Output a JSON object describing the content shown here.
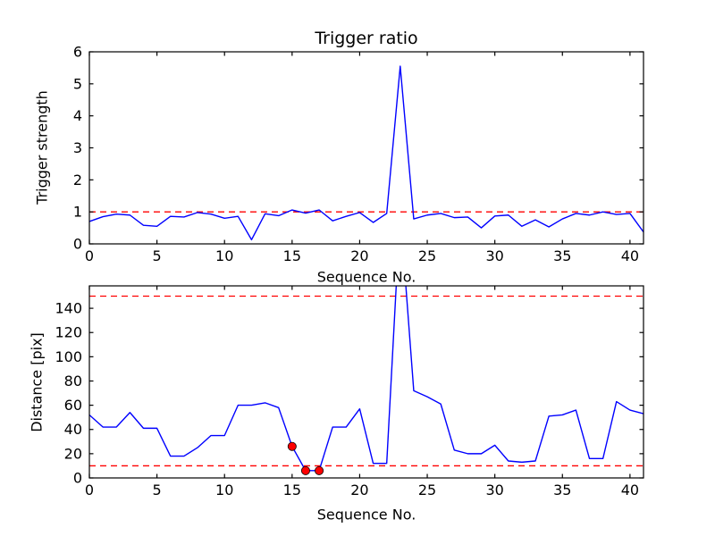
{
  "figure": {
    "background": "#ffffff",
    "axes_color": "#000000",
    "line_color": "#0000ff",
    "threshold_color": "#ff0000"
  },
  "chart_data": [
    {
      "type": "line",
      "title": "Trigger ratio",
      "xlabel": "Sequence No.",
      "ylabel": "Trigger strength",
      "xlim": [
        0,
        41
      ],
      "ylim": [
        0,
        6
      ],
      "xticks": [
        0,
        5,
        10,
        15,
        20,
        25,
        30,
        35,
        40
      ],
      "yticks": [
        0,
        1,
        2,
        3,
        4,
        5,
        6
      ],
      "grid": false,
      "legend": "none",
      "x": [
        0,
        1,
        2,
        3,
        4,
        5,
        6,
        7,
        8,
        9,
        10,
        11,
        12,
        13,
        14,
        15,
        16,
        17,
        18,
        19,
        20,
        21,
        22,
        23,
        24,
        25,
        26,
        27,
        28,
        29,
        30,
        31,
        32,
        33,
        34,
        35,
        36,
        37,
        38,
        39,
        40,
        41
      ],
      "series": [
        {
          "name": "trigger-strength",
          "color": "#0000ff",
          "values": [
            0.7,
            0.85,
            0.93,
            0.9,
            0.58,
            0.55,
            0.86,
            0.84,
            0.98,
            0.93,
            0.8,
            0.86,
            0.13,
            0.94,
            0.88,
            1.06,
            0.96,
            1.06,
            0.72,
            0.86,
            0.98,
            0.67,
            0.95,
            5.55,
            0.78,
            0.9,
            0.95,
            0.82,
            0.84,
            0.5,
            0.87,
            0.9,
            0.55,
            0.75,
            0.53,
            0.78,
            0.95,
            0.9,
            1.0,
            0.92,
            0.95,
            0.37
          ]
        }
      ],
      "threshold_lines": [
        {
          "name": "trigger-threshold",
          "y": 1.0,
          "color": "#ff0000",
          "style": "dashed"
        }
      ],
      "markers": []
    },
    {
      "type": "line",
      "title": "",
      "xlabel": "Sequence No.",
      "ylabel": "Distance [pix]",
      "xlim": [
        0,
        41
      ],
      "ylim": [
        0,
        158.5
      ],
      "xticks": [
        0,
        5,
        10,
        15,
        20,
        25,
        30,
        35,
        40
      ],
      "yticks": [
        0,
        20,
        40,
        60,
        80,
        100,
        120,
        140
      ],
      "grid": false,
      "legend": "none",
      "x": [
        0,
        1,
        2,
        3,
        4,
        5,
        6,
        7,
        8,
        9,
        10,
        11,
        12,
        13,
        14,
        15,
        16,
        17,
        18,
        19,
        20,
        21,
        22,
        23,
        24,
        25,
        26,
        27,
        28,
        29,
        30,
        31,
        32,
        33,
        34,
        35,
        36,
        37,
        38,
        39,
        40,
        41
      ],
      "series": [
        {
          "name": "distance",
          "color": "#0000ff",
          "values": [
            52,
            42,
            42,
            54,
            41,
            41,
            18,
            18,
            25,
            35,
            35,
            60,
            60,
            62,
            58,
            26,
            6,
            6,
            42,
            42,
            57,
            12,
            12,
            220,
            72,
            67,
            61,
            23,
            20,
            20,
            27,
            14,
            13,
            14,
            51,
            52,
            56,
            16,
            16,
            63,
            56,
            53
          ]
        }
      ],
      "threshold_lines": [
        {
          "name": "upper-distance-threshold",
          "y": 150,
          "color": "#ff0000",
          "style": "dashed"
        },
        {
          "name": "lower-distance-threshold",
          "y": 10,
          "color": "#ff0000",
          "style": "dashed"
        }
      ],
      "markers": [
        {
          "x": 15,
          "y": 26
        },
        {
          "x": 16,
          "y": 6
        },
        {
          "x": 17,
          "y": 6
        }
      ],
      "marker_style": {
        "shape": "circle",
        "color": "#ff0000",
        "edge": "#000000"
      }
    }
  ]
}
